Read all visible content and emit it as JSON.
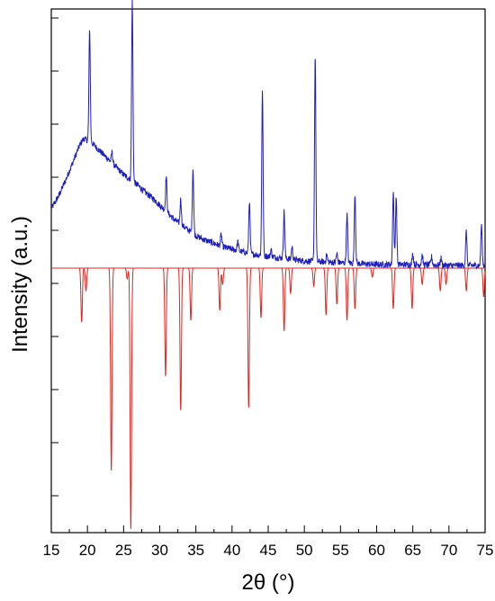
{
  "chart_data": {
    "type": "line",
    "xlabel": "2θ (°)",
    "ylabel": "Intensity (a.u.)",
    "xlim": [
      15,
      75
    ],
    "x_ticks": [
      "15",
      "20",
      "25",
      "30",
      "35",
      "40",
      "45",
      "50",
      "55",
      "60",
      "65",
      "70",
      "75"
    ],
    "y_ticks_labeled": false,
    "y_scale": "arbitrary units, baseline of calculated pattern at 0; measured pattern positive, calculated pattern negative",
    "series": [
      {
        "color": "#1f1fbf",
        "style": "noisy measured pattern above baseline",
        "background": [
          [
            15,
            66
          ],
          [
            16,
            80
          ],
          [
            17,
            98
          ],
          [
            18,
            118
          ],
          [
            19,
            138
          ],
          [
            19.5,
            144
          ],
          [
            20.5,
            140
          ],
          [
            21,
            136
          ],
          [
            22,
            128
          ],
          [
            23,
            120
          ],
          [
            24,
            112
          ],
          [
            25,
            104
          ],
          [
            26,
            98
          ],
          [
            27,
            92
          ],
          [
            28,
            84
          ],
          [
            29,
            78
          ],
          [
            30,
            70
          ],
          [
            31,
            62
          ],
          [
            32,
            54
          ],
          [
            33,
            48
          ],
          [
            34,
            42
          ],
          [
            35,
            36
          ],
          [
            36,
            32
          ],
          [
            37,
            29
          ],
          [
            38,
            26
          ],
          [
            39,
            23
          ],
          [
            40,
            21
          ],
          [
            41,
            19
          ],
          [
            42,
            17
          ],
          [
            44,
            14
          ],
          [
            46,
            12
          ],
          [
            48,
            10
          ],
          [
            50,
            8
          ],
          [
            55,
            6
          ],
          [
            60,
            4
          ],
          [
            65,
            4
          ],
          [
            70,
            3
          ],
          [
            75,
            3
          ]
        ],
        "peaks": [
          {
            "x": 20.3,
            "h": 125
          },
          {
            "x": 23.4,
            "h": 12
          },
          {
            "x": 26.2,
            "h": 200
          },
          {
            "x": 30.9,
            "h": 40
          },
          {
            "x": 32.9,
            "h": 28
          },
          {
            "x": 34.6,
            "h": 72
          },
          {
            "x": 38.5,
            "h": 13
          },
          {
            "x": 40.8,
            "h": 10
          },
          {
            "x": 42.4,
            "h": 58
          },
          {
            "x": 44.2,
            "h": 185
          },
          {
            "x": 45.4,
            "h": 8
          },
          {
            "x": 47.2,
            "h": 52
          },
          {
            "x": 48.3,
            "h": 14
          },
          {
            "x": 51.5,
            "h": 230
          },
          {
            "x": 53.1,
            "h": 8
          },
          {
            "x": 54.5,
            "h": 10
          },
          {
            "x": 55.9,
            "h": 55
          },
          {
            "x": 57.0,
            "h": 78
          },
          {
            "x": 62.3,
            "h": 82
          },
          {
            "x": 62.7,
            "h": 76
          },
          {
            "x": 65.0,
            "h": 12
          },
          {
            "x": 66.3,
            "h": 10
          },
          {
            "x": 67.6,
            "h": 9
          },
          {
            "x": 68.9,
            "h": 8
          },
          {
            "x": 72.4,
            "h": 38
          },
          {
            "x": 74.5,
            "h": 45
          }
        ]
      },
      {
        "color": "#e8221c",
        "style": "calculated pattern below baseline",
        "peaks": [
          {
            "x": 19.2,
            "h": 60
          },
          {
            "x": 19.8,
            "h": 25
          },
          {
            "x": 23.3,
            "h": 225
          },
          {
            "x": 25.5,
            "h": 12
          },
          {
            "x": 26.0,
            "h": 290
          },
          {
            "x": 30.8,
            "h": 120
          },
          {
            "x": 32.9,
            "h": 158
          },
          {
            "x": 34.3,
            "h": 58
          },
          {
            "x": 38.3,
            "h": 47
          },
          {
            "x": 38.7,
            "h": 18
          },
          {
            "x": 42.3,
            "h": 155
          },
          {
            "x": 44.0,
            "h": 55
          },
          {
            "x": 47.2,
            "h": 70
          },
          {
            "x": 48.1,
            "h": 28
          },
          {
            "x": 51.3,
            "h": 20
          },
          {
            "x": 53.0,
            "h": 52
          },
          {
            "x": 54.5,
            "h": 40
          },
          {
            "x": 55.9,
            "h": 58
          },
          {
            "x": 57.0,
            "h": 45
          },
          {
            "x": 59.4,
            "h": 10
          },
          {
            "x": 62.3,
            "h": 45
          },
          {
            "x": 64.9,
            "h": 45
          },
          {
            "x": 66.3,
            "h": 18
          },
          {
            "x": 68.8,
            "h": 25
          },
          {
            "x": 69.6,
            "h": 18
          },
          {
            "x": 72.4,
            "h": 25
          },
          {
            "x": 74.8,
            "h": 32
          }
        ]
      }
    ]
  }
}
